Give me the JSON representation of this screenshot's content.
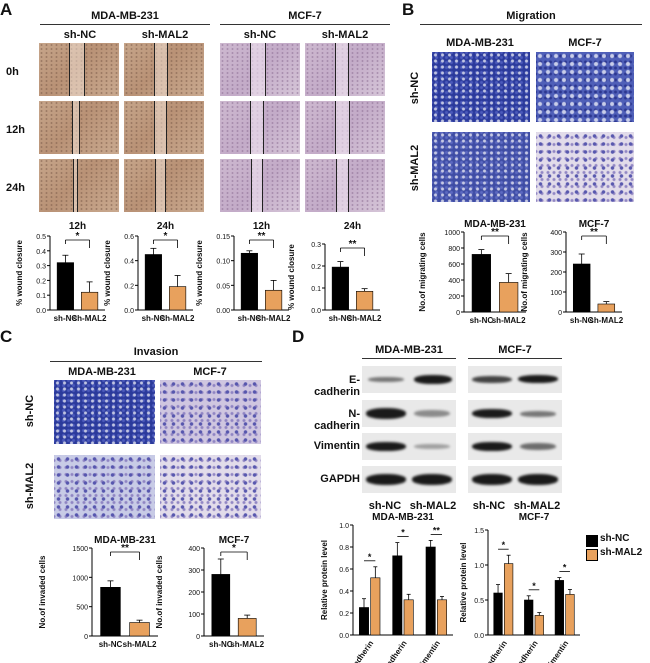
{
  "colors": {
    "shnc": "#000000",
    "shmal2": "#E8A15D"
  },
  "panels": {
    "A": "A",
    "B": "B",
    "C": "C",
    "D": "D"
  },
  "panelA": {
    "cell_lines": [
      "MDA-MB-231",
      "MCF-7"
    ],
    "groups": [
      "sh-NC",
      "sh-MAL2"
    ],
    "times": [
      "0h",
      "12h",
      "24h"
    ],
    "chart_ylabel": "% wound closure",
    "xticks": [
      "sh-NC",
      "sh-MAL2"
    ]
  },
  "panelB": {
    "title": "Migration",
    "cell_lines": [
      "MDA-MB-231",
      "MCF-7"
    ],
    "rows": [
      "sh-NC",
      "sh-MAL2"
    ],
    "chart_ylabel": "No.of migrating cells",
    "xticks": [
      "sh-NC",
      "sh-MAL2"
    ]
  },
  "panelC": {
    "title": "Invasion",
    "cell_lines": [
      "MDA-MB-231",
      "MCF-7"
    ],
    "rows": [
      "sh-NC",
      "sh-MAL2"
    ],
    "chart_ylabel": "No.of invaded cells",
    "xticks": [
      "sh-NC",
      "sh-MAL2"
    ]
  },
  "panelD": {
    "cell_lines": [
      "MDA-MB-231",
      "MCF-7"
    ],
    "proteins": [
      "E-cadherin",
      "N-cadherin",
      "Vimentin",
      "GAPDH"
    ],
    "lane_labels": [
      "sh-NC",
      "sh-MAL2"
    ],
    "chart_ylabel": "Relative protein level",
    "legend": [
      "sh-NC",
      "sh-MAL2"
    ]
  },
  "chart_data": [
    {
      "id": "A-MDA-12h",
      "type": "bar",
      "title": "12h",
      "categories": [
        "sh-NC",
        "sh-MAL2"
      ],
      "values": [
        0.32,
        0.12
      ],
      "errors": [
        0.05,
        0.07
      ],
      "ylabel": "% wound closure",
      "ylim": [
        0,
        0.5
      ],
      "yticks": [
        "0.0",
        "0.1",
        "0.2",
        "0.3",
        "0.4",
        "0.5"
      ],
      "sig": "*"
    },
    {
      "id": "A-MDA-24h",
      "type": "bar",
      "title": "24h",
      "categories": [
        "sh-NC",
        "sh-MAL2"
      ],
      "values": [
        0.45,
        0.19
      ],
      "errors": [
        0.05,
        0.09
      ],
      "ylabel": "% wound closure",
      "ylim": [
        0,
        0.6
      ],
      "yticks": [
        "0.0",
        "0.2",
        "0.4",
        "0.6"
      ],
      "sig": "*"
    },
    {
      "id": "A-MCF-12h",
      "type": "bar",
      "title": "12h",
      "categories": [
        "sh-NC",
        "sh-MAL2"
      ],
      "values": [
        0.115,
        0.04
      ],
      "errors": [
        0.005,
        0.02
      ],
      "ylabel": "% wound closure",
      "ylim": [
        0,
        0.15
      ],
      "yticks": [
        "0.00",
        "0.05",
        "0.10",
        "0.15"
      ],
      "sig": "**"
    },
    {
      "id": "A-MCF-24h",
      "type": "bar",
      "title": "24h",
      "categories": [
        "sh-NC",
        "sh-MAL2"
      ],
      "values": [
        0.195,
        0.085
      ],
      "errors": [
        0.025,
        0.012
      ],
      "ylabel": "% wound closure",
      "ylim": [
        0,
        0.3
      ],
      "yticks": [
        "0.0",
        "0.1",
        "0.2",
        "0.3"
      ],
      "sig": "**"
    },
    {
      "id": "B-MDA",
      "type": "bar",
      "title": "MDA-MB-231",
      "categories": [
        "sh-NC",
        "sh-MAL2"
      ],
      "values": [
        720,
        370
      ],
      "errors": [
        60,
        110
      ],
      "ylabel": "No.of migrating cells",
      "ylim": [
        0,
        1000
      ],
      "yticks": [
        "0",
        "200",
        "400",
        "600",
        "800",
        "1000"
      ],
      "sig": "**"
    },
    {
      "id": "B-MCF",
      "type": "bar",
      "title": "MCF-7",
      "categories": [
        "sh-NC",
        "sh-MAL2"
      ],
      "values": [
        240,
        40
      ],
      "errors": [
        50,
        12
      ],
      "ylabel": "No.of migrating cells",
      "ylim": [
        0,
        400
      ],
      "yticks": [
        "0",
        "100",
        "200",
        "300",
        "400"
      ],
      "sig": "**"
    },
    {
      "id": "C-MDA",
      "type": "bar",
      "title": "MDA-MB-231",
      "categories": [
        "sh-NC",
        "sh-MAL2"
      ],
      "values": [
        830,
        230
      ],
      "errors": [
        110,
        40
      ],
      "ylabel": "No.of invaded cells",
      "ylim": [
        0,
        1500
      ],
      "yticks": [
        "0",
        "500",
        "1000",
        "1500"
      ],
      "sig": "**"
    },
    {
      "id": "C-MCF",
      "type": "bar",
      "title": "MCF-7",
      "categories": [
        "sh-NC",
        "sh-MAL2"
      ],
      "values": [
        280,
        80
      ],
      "errors": [
        70,
        15
      ],
      "ylabel": "No.of invaded cells",
      "ylim": [
        0,
        400
      ],
      "yticks": [
        "0",
        "100",
        "200",
        "300",
        "400"
      ],
      "sig": "*"
    },
    {
      "id": "D-MDA",
      "type": "bar",
      "title": "MDA-MB-231",
      "categories": [
        "E-cadherin",
        "N-cadherin",
        "Vimentin"
      ],
      "series": [
        {
          "name": "sh-NC",
          "values": [
            0.25,
            0.72,
            0.8
          ],
          "errors": [
            0.08,
            0.12,
            0.06
          ]
        },
        {
          "name": "sh-MAL2",
          "values": [
            0.52,
            0.32,
            0.32
          ],
          "errors": [
            0.1,
            0.05,
            0.03
          ]
        }
      ],
      "ylabel": "Relative protein level",
      "ylim": [
        0,
        1.0
      ],
      "yticks": [
        "0.0",
        "0.2",
        "0.4",
        "0.6",
        "0.8",
        "1.0"
      ],
      "sig": [
        "*",
        "*",
        "**"
      ]
    },
    {
      "id": "D-MCF",
      "type": "bar",
      "title": "MCF-7",
      "categories": [
        "E-cadherin",
        "N-cadherin",
        "Vimentin"
      ],
      "series": [
        {
          "name": "sh-NC",
          "values": [
            0.6,
            0.5,
            0.78
          ],
          "errors": [
            0.12,
            0.06,
            0.04
          ]
        },
        {
          "name": "sh-MAL2",
          "values": [
            1.02,
            0.28,
            0.58
          ],
          "errors": [
            0.12,
            0.04,
            0.07
          ]
        }
      ],
      "ylabel": "Relative protein level",
      "ylim": [
        0,
        1.5
      ],
      "yticks": [
        "0.0",
        "0.5",
        "1.0",
        "1.5"
      ],
      "sig": [
        "*",
        "*",
        "*"
      ]
    }
  ]
}
